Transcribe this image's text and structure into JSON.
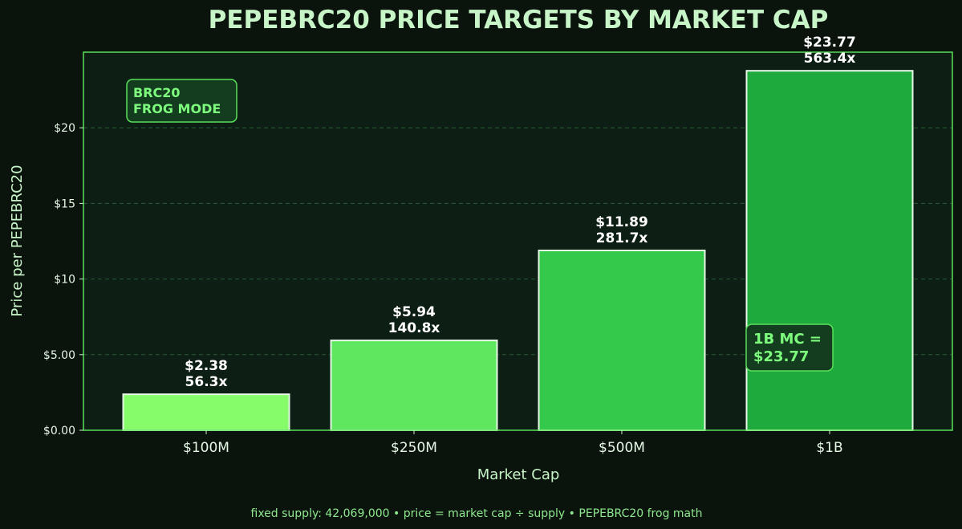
{
  "chart_data": {
    "type": "bar",
    "title": "PEPEBRC20 PRICE TARGETS BY MARKET CAP",
    "xlabel": "Market Cap",
    "ylabel": "Price per PEPEBRC20",
    "categories": [
      "$100M",
      "$250M",
      "$500M",
      "$1B"
    ],
    "values": [
      2.38,
      5.94,
      11.89,
      23.77
    ],
    "value_labels": [
      "$2.38",
      "$5.94",
      "$11.89",
      "$23.77"
    ],
    "multiplier_labels": [
      "56.3x",
      "140.8x",
      "281.7x",
      "563.4x"
    ],
    "bar_colors": [
      "#86fc6a",
      "#5fe85f",
      "#35c94b",
      "#1faa3d"
    ],
    "ylim": [
      0,
      25.0
    ],
    "yticks": [
      0,
      5,
      10,
      15,
      20
    ],
    "ytick_labels": [
      "$0.00",
      "$5.00",
      "$10",
      "$15",
      "$20"
    ],
    "grid": true,
    "annotations": {
      "mode_badge_line1": "BRC20",
      "mode_badge_line2": "FROG MODE",
      "target_badge_line1": "1B MC =",
      "target_badge_line2": "$23.77"
    },
    "footer": "fixed supply: 42,069,000 • price = market cap ÷ supply • PEPEBRC20 frog math"
  },
  "colors": {
    "background": "#0a140d",
    "plot_background": "#0d1f14",
    "frame": "#58e05a",
    "grid": "#2a5a35",
    "accent": "#7dfc7d"
  }
}
